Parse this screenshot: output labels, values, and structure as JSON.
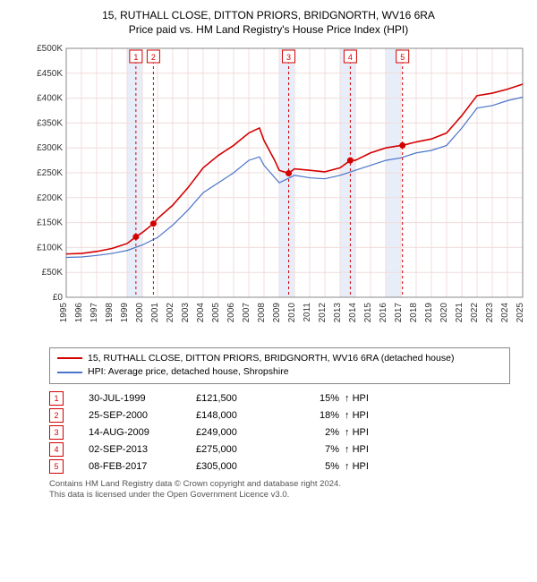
{
  "title_line1": "15, RUTHALL CLOSE, DITTON PRIORS, BRIDGNORTH, WV16 6RA",
  "title_line2": "Price paid vs. HM Land Registry's House Price Index (HPI)",
  "chart": {
    "type": "line",
    "background_color": "#ffffff",
    "grid_color": "#f0dcdc",
    "axis_color": "#888888",
    "band_color": "#e8eef9",
    "ylim": [
      0,
      500000
    ],
    "ytick_step": 50000,
    "ytick_labels": [
      "£0",
      "£50K",
      "£100K",
      "£150K",
      "£200K",
      "£250K",
      "£300K",
      "£350K",
      "£400K",
      "£450K",
      "£500K"
    ],
    "xlim": [
      1995,
      2025
    ],
    "xticks": [
      1995,
      1996,
      1997,
      1998,
      1999,
      2000,
      2001,
      2002,
      2003,
      2004,
      2005,
      2006,
      2007,
      2008,
      2009,
      2010,
      2011,
      2012,
      2013,
      2014,
      2015,
      2016,
      2017,
      2018,
      2019,
      2020,
      2021,
      2022,
      2023,
      2024,
      2025
    ],
    "series_property": {
      "color": "#d40000",
      "width": 1.6,
      "data": [
        [
          1995,
          87000
        ],
        [
          1996,
          88000
        ],
        [
          1997,
          92000
        ],
        [
          1998,
          98000
        ],
        [
          1999,
          108000
        ],
        [
          1999.58,
          121500
        ],
        [
          2000,
          130000
        ],
        [
          2000.73,
          148000
        ],
        [
          2001,
          158000
        ],
        [
          2002,
          185000
        ],
        [
          2003,
          220000
        ],
        [
          2004,
          260000
        ],
        [
          2005,
          285000
        ],
        [
          2006,
          305000
        ],
        [
          2007,
          330000
        ],
        [
          2007.7,
          340000
        ],
        [
          2008,
          315000
        ],
        [
          2008.7,
          275000
        ],
        [
          2009,
          255000
        ],
        [
          2009.62,
          249000
        ],
        [
          2010,
          258000
        ],
        [
          2011,
          255000
        ],
        [
          2012,
          252000
        ],
        [
          2013,
          260000
        ],
        [
          2013.67,
          275000
        ],
        [
          2014,
          275000
        ],
        [
          2015,
          290000
        ],
        [
          2016,
          300000
        ],
        [
          2017,
          305000
        ],
        [
          2017.1,
          305000
        ],
        [
          2018,
          312000
        ],
        [
          2019,
          318000
        ],
        [
          2020,
          330000
        ],
        [
          2021,
          365000
        ],
        [
          2022,
          405000
        ],
        [
          2023,
          410000
        ],
        [
          2024,
          418000
        ],
        [
          2025,
          428000
        ]
      ]
    },
    "series_hpi": {
      "color": "#4a74c9",
      "width": 1.2,
      "data": [
        [
          1995,
          80000
        ],
        [
          1996,
          81000
        ],
        [
          1997,
          84000
        ],
        [
          1998,
          88000
        ],
        [
          1999,
          94000
        ],
        [
          2000,
          105000
        ],
        [
          2001,
          120000
        ],
        [
          2002,
          145000
        ],
        [
          2003,
          175000
        ],
        [
          2004,
          210000
        ],
        [
          2005,
          230000
        ],
        [
          2006,
          250000
        ],
        [
          2007,
          275000
        ],
        [
          2007.7,
          282000
        ],
        [
          2008,
          265000
        ],
        [
          2009,
          230000
        ],
        [
          2010,
          245000
        ],
        [
          2011,
          240000
        ],
        [
          2012,
          238000
        ],
        [
          2013,
          245000
        ],
        [
          2014,
          255000
        ],
        [
          2015,
          265000
        ],
        [
          2016,
          275000
        ],
        [
          2017,
          280000
        ],
        [
          2018,
          290000
        ],
        [
          2019,
          295000
        ],
        [
          2020,
          305000
        ],
        [
          2021,
          340000
        ],
        [
          2022,
          380000
        ],
        [
          2023,
          385000
        ],
        [
          2024,
          395000
        ],
        [
          2025,
          402000
        ]
      ]
    },
    "marker_lines": {
      "color": "#d40000",
      "dash": "3,3",
      "points": [
        {
          "n": "1",
          "x": 1999.58,
          "y": 121500
        },
        {
          "n": "2",
          "x": 2000.73,
          "y": 148000
        },
        {
          "n": "3",
          "x": 2009.62,
          "y": 249000
        },
        {
          "n": "4",
          "x": 2013.67,
          "y": 275000
        },
        {
          "n": "5",
          "x": 2017.1,
          "y": 305000
        }
      ]
    },
    "bands": [
      [
        1999,
        2000
      ],
      [
        2009,
        2010
      ],
      [
        2013,
        2014
      ],
      [
        2016,
        2017
      ]
    ]
  },
  "legend": {
    "row1": {
      "color": "#d40000",
      "label": "15, RUTHALL CLOSE, DITTON PRIORS, BRIDGNORTH, WV16 6RA (detached house)"
    },
    "row2": {
      "color": "#4a74c9",
      "label": "HPI: Average price, detached house, Shropshire"
    }
  },
  "sales": [
    {
      "n": "1",
      "date": "30-JUL-1999",
      "price": "£121,500",
      "pct": "15%",
      "arrow": "↑",
      "hpi": "HPI"
    },
    {
      "n": "2",
      "date": "25-SEP-2000",
      "price": "£148,000",
      "pct": "18%",
      "arrow": "↑",
      "hpi": "HPI"
    },
    {
      "n": "3",
      "date": "14-AUG-2009",
      "price": "£249,000",
      "pct": "2%",
      "arrow": "↑",
      "hpi": "HPI"
    },
    {
      "n": "4",
      "date": "02-SEP-2013",
      "price": "£275,000",
      "pct": "7%",
      "arrow": "↑",
      "hpi": "HPI"
    },
    {
      "n": "5",
      "date": "08-FEB-2017",
      "price": "£305,000",
      "pct": "5%",
      "arrow": "↑",
      "hpi": "HPI"
    }
  ],
  "footnote_line1": "Contains HM Land Registry data © Crown copyright and database right 2024.",
  "footnote_line2": "This data is licensed under the Open Government Licence v3.0."
}
